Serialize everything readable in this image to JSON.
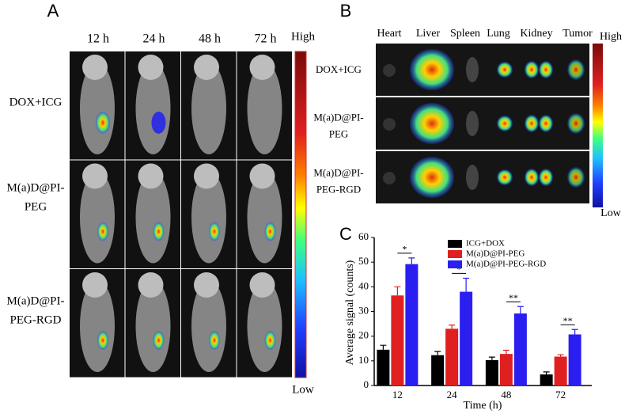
{
  "panel_a": {
    "label": "A",
    "columns": [
      "12 h",
      "24 h",
      "48 h",
      "72 h"
    ],
    "rows": [
      [
        "DOX+ICG"
      ],
      [
        "M(a)D@PI-",
        "PEG"
      ],
      [
        "M(a)D@PI-",
        "PEG-RGD"
      ]
    ],
    "scale_high": "High",
    "scale_low": "Low"
  },
  "panel_b": {
    "label": "B",
    "columns": [
      "Heart",
      "Liver",
      "Spleen",
      "Lung",
      "Kidney",
      "Tumor"
    ],
    "rows": [
      [
        "DOX+ICG"
      ],
      [
        "M(a)D@PI-",
        "PEG"
      ],
      [
        "M(a)D@PI-",
        "PEG-RGD"
      ]
    ],
    "scale_high": "High",
    "scale_low": "Low"
  },
  "chart_data": {
    "type": "bar",
    "panel_label": "C",
    "xlabel": "Time (h)",
    "ylabel": "Average signal (counts)",
    "categories": [
      "12",
      "24",
      "48",
      "72"
    ],
    "series": [
      {
        "name": "ICG+DOX",
        "color": "#000000",
        "values": [
          14.5,
          12.3,
          10.3,
          4.5
        ],
        "errors": [
          1.8,
          1.5,
          1.2,
          1.0
        ]
      },
      {
        "name": "M(a)D@PI-PEG",
        "color": "#e02020",
        "values": [
          36.5,
          23,
          12.8,
          11.7
        ],
        "errors": [
          3.5,
          1.5,
          1.5,
          0.8
        ]
      },
      {
        "name": "M(a)D@PI-PEG-RGD",
        "color": "#2a1ff0",
        "values": [
          49.2,
          38,
          29.2,
          20.7
        ],
        "errors": [
          2.5,
          5.5,
          2.8,
          2.0
        ]
      }
    ],
    "annotations": [
      "*",
      "*",
      "**",
      "**"
    ],
    "ylim": [
      0,
      60
    ],
    "yticks": [
      0,
      10,
      20,
      30,
      40,
      50,
      60
    ],
    "legend": "upper center"
  }
}
